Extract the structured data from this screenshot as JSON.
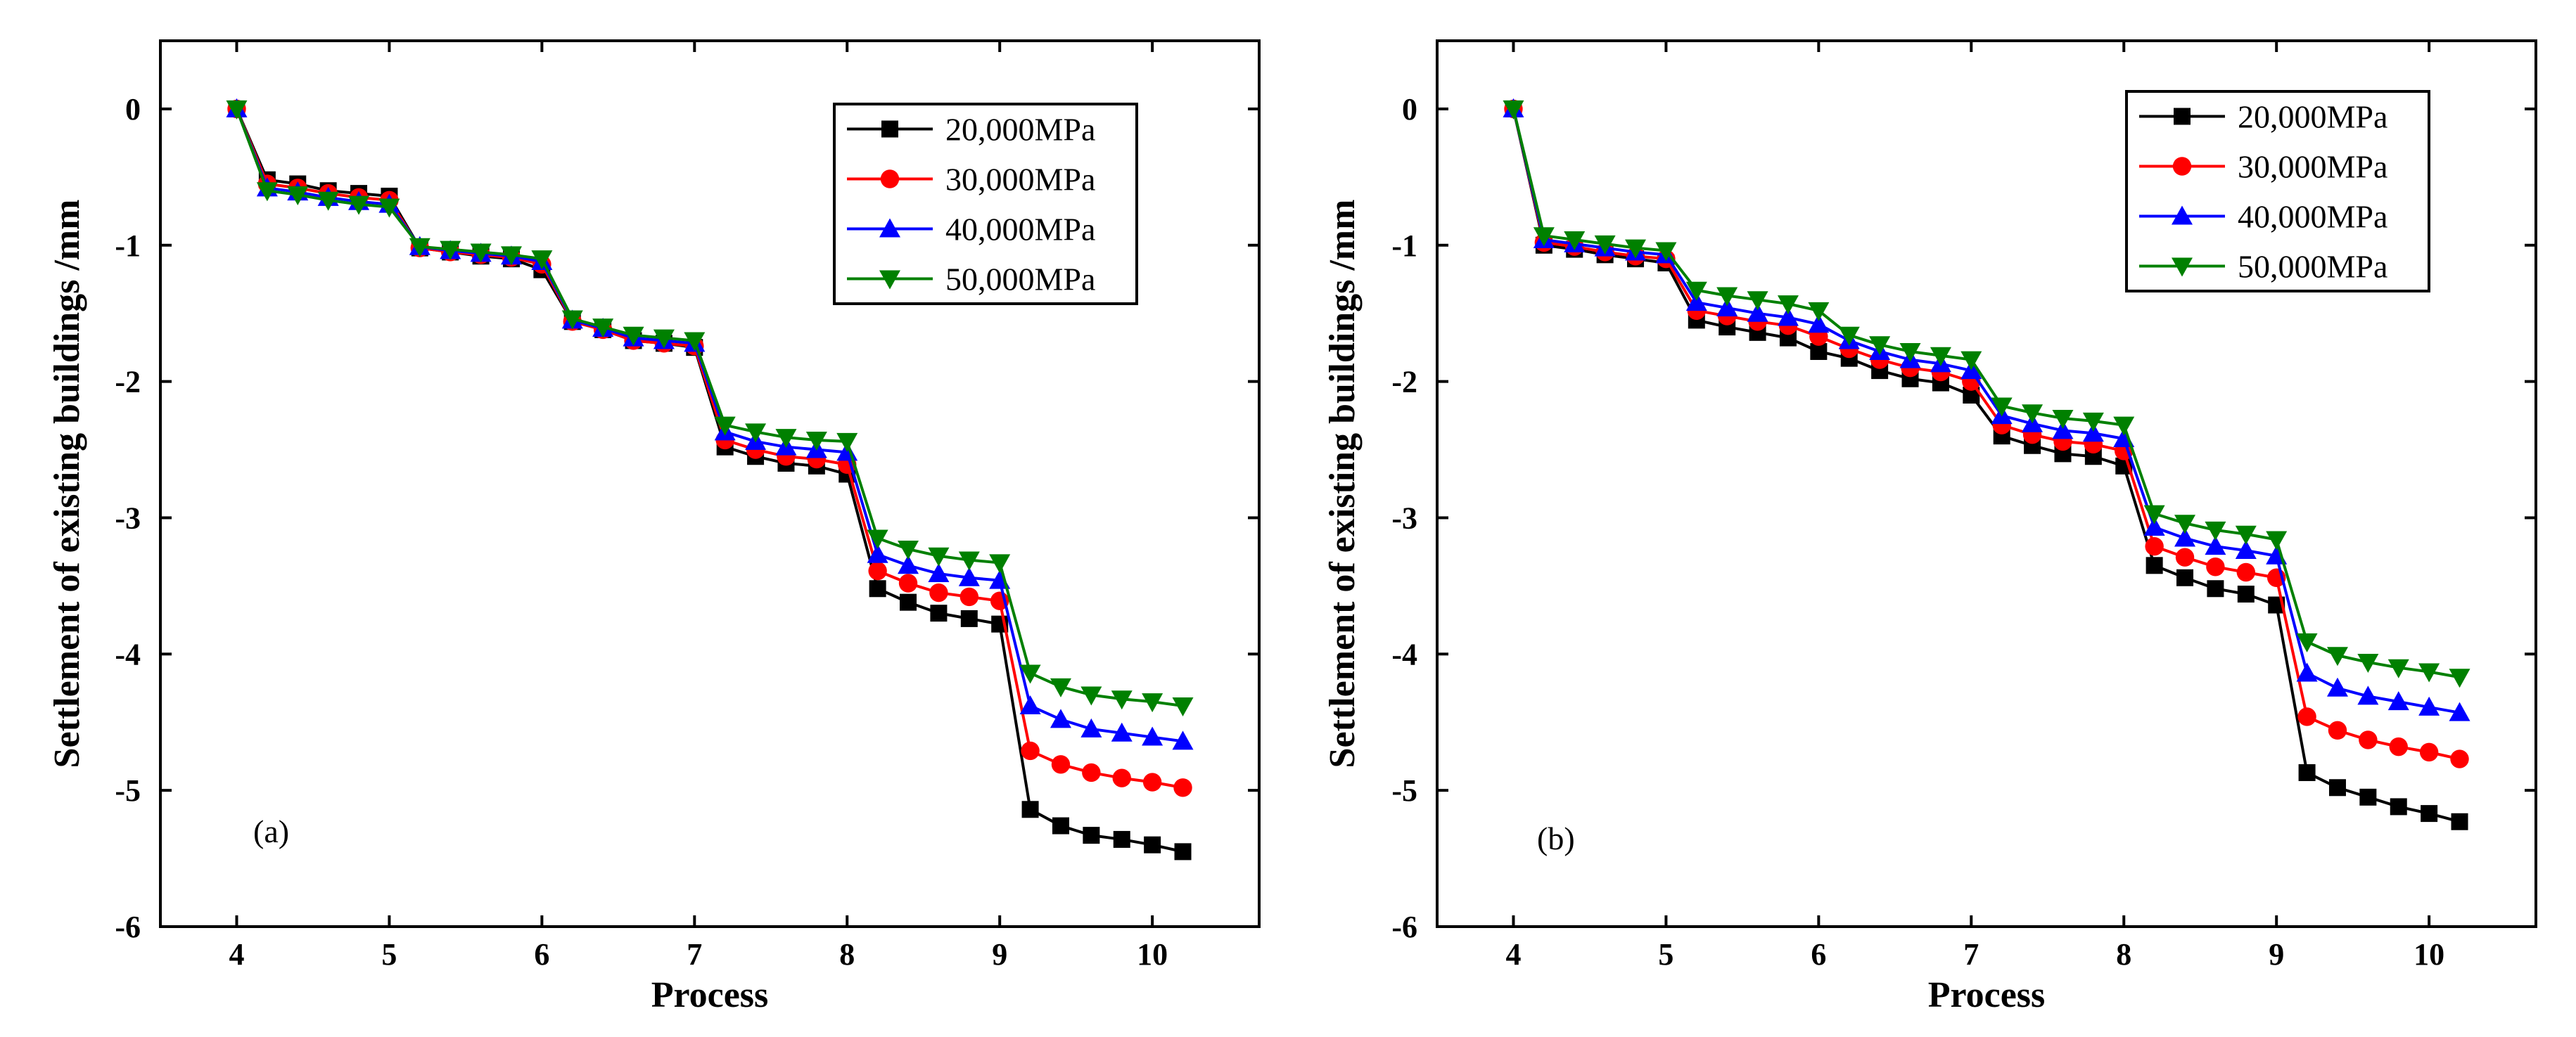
{
  "chart_data": [
    {
      "type": "line",
      "panel_label": "(a)",
      "xlabel": "Process",
      "ylabel": "Settlement of existing buildings /mm",
      "xlim": [
        3.5,
        10.7
      ],
      "ylim": [
        -6,
        0.5
      ],
      "xticks": [
        4,
        5,
        6,
        7,
        8,
        9,
        10
      ],
      "yticks": [
        0,
        -1,
        -2,
        -3,
        -4,
        -5,
        -6
      ],
      "legend_position": "top-right",
      "grid": false,
      "x": [
        4.0,
        4.2,
        4.4,
        4.6,
        4.8,
        5.0,
        5.2,
        5.4,
        5.6,
        5.8,
        6.0,
        6.2,
        6.4,
        6.6,
        6.8,
        7.0,
        7.2,
        7.4,
        7.6,
        7.8,
        8.0,
        8.2,
        8.4,
        8.6,
        8.8,
        9.0,
        9.2,
        9.4,
        9.6,
        9.8,
        10.0,
        10.2
      ],
      "series": [
        {
          "name": "20,000MPa",
          "color": "#000000",
          "marker": "square",
          "values": [
            0,
            -0.52,
            -0.55,
            -0.6,
            -0.62,
            -0.64,
            -1.02,
            -1.05,
            -1.08,
            -1.1,
            -1.18,
            -1.56,
            -1.62,
            -1.7,
            -1.72,
            -1.75,
            -2.48,
            -2.55,
            -2.6,
            -2.62,
            -2.68,
            -3.52,
            -3.62,
            -3.7,
            -3.74,
            -3.78,
            -5.14,
            -5.26,
            -5.33,
            -5.36,
            -5.4,
            -5.45
          ]
        },
        {
          "name": "30,000MPa",
          "color": "#ff0000",
          "marker": "circle",
          "values": [
            0,
            -0.55,
            -0.58,
            -0.62,
            -0.65,
            -0.67,
            -1.02,
            -1.05,
            -1.07,
            -1.09,
            -1.14,
            -1.56,
            -1.62,
            -1.7,
            -1.72,
            -1.74,
            -2.43,
            -2.5,
            -2.55,
            -2.57,
            -2.61,
            -3.39,
            -3.48,
            -3.55,
            -3.58,
            -3.61,
            -4.71,
            -4.81,
            -4.87,
            -4.91,
            -4.94,
            -4.98
          ]
        },
        {
          "name": "40,000MPa",
          "color": "#0000ff",
          "marker": "triangle-up",
          "values": [
            0,
            -0.58,
            -0.61,
            -0.65,
            -0.68,
            -0.7,
            -1.01,
            -1.04,
            -1.06,
            -1.08,
            -1.12,
            -1.55,
            -1.61,
            -1.68,
            -1.7,
            -1.72,
            -2.37,
            -2.44,
            -2.48,
            -2.5,
            -2.52,
            -3.27,
            -3.35,
            -3.41,
            -3.44,
            -3.46,
            -4.38,
            -4.48,
            -4.55,
            -4.58,
            -4.61,
            -4.64
          ]
        },
        {
          "name": "50,000MPa",
          "color": "#008000",
          "marker": "triangle-down",
          "values": [
            0,
            -0.6,
            -0.63,
            -0.67,
            -0.7,
            -0.72,
            -1.01,
            -1.03,
            -1.05,
            -1.07,
            -1.1,
            -1.54,
            -1.6,
            -1.66,
            -1.68,
            -1.7,
            -2.32,
            -2.37,
            -2.41,
            -2.43,
            -2.44,
            -3.15,
            -3.23,
            -3.28,
            -3.31,
            -3.33,
            -4.14,
            -4.24,
            -4.3,
            -4.33,
            -4.35,
            -4.38
          ]
        }
      ]
    },
    {
      "type": "line",
      "panel_label": "(b)",
      "xlabel": "Process",
      "ylabel": "Settlement of existing buildings /mm",
      "xlim": [
        3.5,
        10.7
      ],
      "ylim": [
        -6,
        0.5
      ],
      "xticks": [
        4,
        5,
        6,
        7,
        8,
        9,
        10
      ],
      "yticks": [
        0,
        -1,
        -2,
        -3,
        -4,
        -5,
        -6
      ],
      "legend_position": "top-right",
      "grid": false,
      "x": [
        4.0,
        4.2,
        4.4,
        4.6,
        4.8,
        5.0,
        5.2,
        5.4,
        5.6,
        5.8,
        6.0,
        6.2,
        6.4,
        6.6,
        6.8,
        7.0,
        7.2,
        7.4,
        7.6,
        7.8,
        8.0,
        8.2,
        8.4,
        8.6,
        8.8,
        9.0,
        9.2,
        9.4,
        9.6,
        9.8,
        10.0,
        10.2
      ],
      "series": [
        {
          "name": "20,000MPa",
          "color": "#000000",
          "marker": "square",
          "values": [
            0,
            -1.0,
            -1.03,
            -1.07,
            -1.1,
            -1.13,
            -1.55,
            -1.6,
            -1.64,
            -1.68,
            -1.78,
            -1.83,
            -1.92,
            -1.98,
            -2.01,
            -2.1,
            -2.4,
            -2.47,
            -2.53,
            -2.55,
            -2.62,
            -3.35,
            -3.44,
            -3.52,
            -3.56,
            -3.64,
            -4.87,
            -4.98,
            -5.05,
            -5.12,
            -5.17,
            -5.23
          ]
        },
        {
          "name": "30,000MPa",
          "color": "#ff0000",
          "marker": "circle",
          "values": [
            0,
            -0.98,
            -1.01,
            -1.05,
            -1.08,
            -1.1,
            -1.48,
            -1.52,
            -1.56,
            -1.59,
            -1.67,
            -1.76,
            -1.84,
            -1.9,
            -1.93,
            -2.0,
            -2.32,
            -2.39,
            -2.44,
            -2.46,
            -2.51,
            -3.21,
            -3.29,
            -3.36,
            -3.4,
            -3.44,
            -4.46,
            -4.56,
            -4.63,
            -4.68,
            -4.72,
            -4.77
          ]
        },
        {
          "name": "40,000MPa",
          "color": "#0000ff",
          "marker": "triangle-up",
          "values": [
            0,
            -0.96,
            -0.99,
            -1.02,
            -1.05,
            -1.07,
            -1.42,
            -1.46,
            -1.5,
            -1.53,
            -1.58,
            -1.7,
            -1.78,
            -1.84,
            -1.87,
            -1.92,
            -2.25,
            -2.31,
            -2.36,
            -2.38,
            -2.42,
            -3.07,
            -3.15,
            -3.21,
            -3.24,
            -3.28,
            -4.14,
            -4.25,
            -4.31,
            -4.35,
            -4.39,
            -4.43
          ]
        },
        {
          "name": "50,000MPa",
          "color": "#008000",
          "marker": "triangle-down",
          "values": [
            0,
            -0.93,
            -0.96,
            -0.99,
            -1.02,
            -1.04,
            -1.33,
            -1.37,
            -1.4,
            -1.43,
            -1.48,
            -1.66,
            -1.73,
            -1.78,
            -1.81,
            -1.84,
            -2.18,
            -2.23,
            -2.27,
            -2.29,
            -2.32,
            -2.97,
            -3.04,
            -3.09,
            -3.12,
            -3.16,
            -3.91,
            -4.01,
            -4.06,
            -4.1,
            -4.13,
            -4.17
          ]
        }
      ]
    }
  ]
}
